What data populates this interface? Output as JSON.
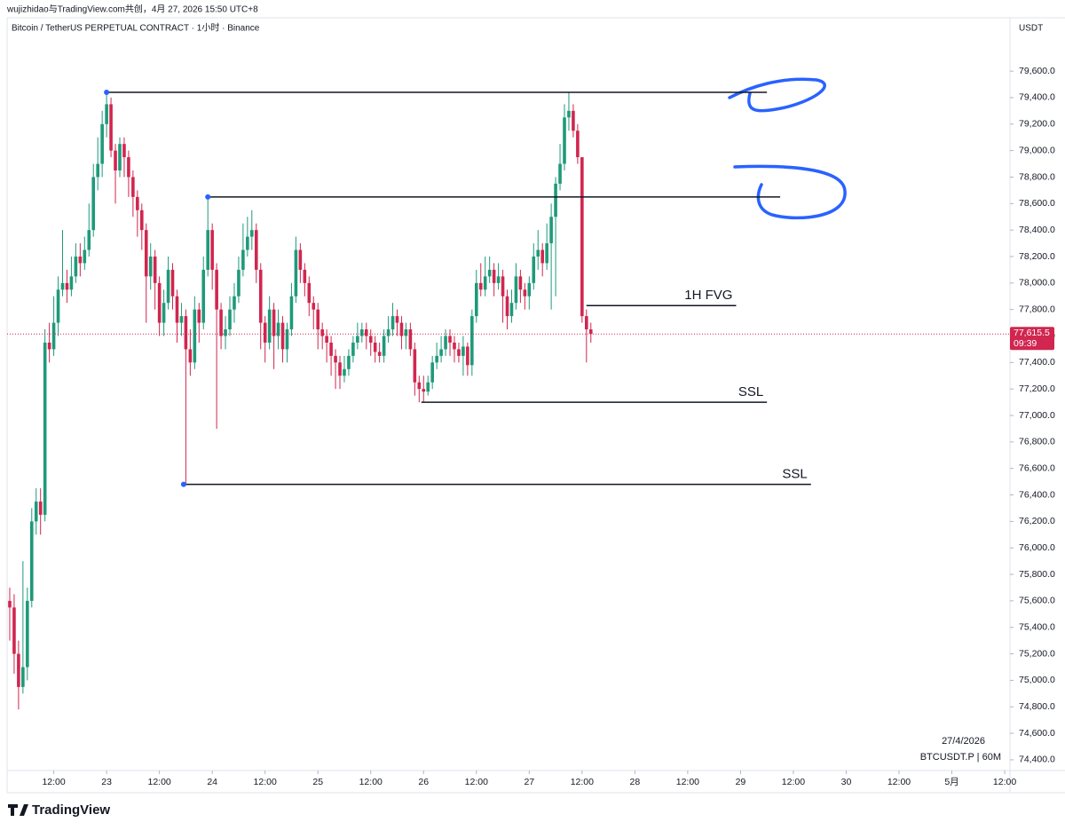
{
  "header": {
    "watermark": "wujizhidao与TradingView.com共创，4月 27, 2026 15:50 UTC+8",
    "brand": "TradingView"
  },
  "chart_data": {
    "type": "candlestick",
    "title": "Bitcoin / TetherUS PERPETUAL CONTRACT · 1小时 · Binance",
    "y_unit": "USDT",
    "date_note": "27/4/2026",
    "symbol_note": "BTCUSDT.P | 60M",
    "up_color": "#1e9a7a",
    "down_color": "#d0264f",
    "x": [
      0,
      1,
      2,
      3,
      4,
      5,
      6,
      7,
      8,
      9,
      10,
      11,
      12,
      13,
      14,
      15,
      16,
      17,
      18,
      19,
      20,
      21,
      22,
      23,
      24,
      25,
      26,
      27,
      28,
      29,
      30,
      31,
      32,
      33,
      34,
      35,
      36,
      37,
      38,
      39,
      40,
      41,
      42,
      43,
      44,
      45,
      46,
      47,
      48,
      49,
      50,
      51,
      52,
      53,
      54,
      55,
      56,
      57,
      58,
      59,
      60,
      61,
      62,
      63,
      64,
      65,
      66,
      67,
      68,
      69,
      70,
      71,
      72,
      73,
      74,
      75,
      76,
      77,
      78,
      79,
      80,
      81,
      82,
      83,
      84,
      85,
      86,
      87,
      88,
      89,
      90,
      91,
      92,
      93,
      94,
      95,
      96,
      97,
      98,
      99,
      100,
      101,
      102,
      103,
      104,
      105,
      106,
      107,
      108,
      109,
      110,
      111,
      112,
      113,
      114,
      115,
      116,
      117,
      118,
      119,
      120,
      121,
      122,
      123,
      124,
      125,
      126,
      127,
      128,
      129,
      130,
      131,
      132
    ],
    "open": [
      75600,
      75550,
      75200,
      74950,
      75100,
      75600,
      76200,
      76350,
      76250,
      77550,
      77500,
      77700,
      77950,
      78000,
      77950,
      78050,
      78200,
      78150,
      78250,
      78400,
      78800,
      78900,
      79200,
      79350,
      79000,
      78850,
      79050,
      78950,
      78800,
      78650,
      78550,
      78400,
      78050,
      78200,
      78000,
      77700,
      77850,
      78100,
      77900,
      77700,
      77750,
      77500,
      77400,
      77800,
      77700,
      78100,
      78400,
      78100,
      77800,
      77600,
      77650,
      77800,
      77900,
      78100,
      78250,
      78350,
      78400,
      78100,
      77700,
      77550,
      77800,
      77600,
      77700,
      77500,
      77650,
      77900,
      78250,
      78100,
      78000,
      77850,
      77800,
      77650,
      77600,
      77550,
      77450,
      77400,
      77300,
      77350,
      77450,
      77550,
      77600,
      77650,
      77600,
      77550,
      77480,
      77450,
      77600,
      77650,
      77750,
      77700,
      77600,
      77650,
      77500,
      77250,
      77200,
      77180,
      77250,
      77400,
      77450,
      77500,
      77600,
      77550,
      77500,
      77450,
      77520,
      77380,
      77750,
      78000,
      77950,
      78050,
      78100,
      78000,
      78050,
      77900,
      77750,
      77850,
      78050,
      77950,
      77900,
      78000,
      78200,
      78250,
      78150,
      78300,
      78500,
      78750,
      78900,
      79250,
      79300,
      79150,
      78950,
      77750,
      77650
    ],
    "high": [
      75700,
      75650,
      75300,
      75900,
      75700,
      76300,
      76450,
      76450,
      77650,
      77700,
      77900,
      78050,
      78400,
      78100,
      78200,
      78300,
      78300,
      78350,
      78600,
      78900,
      79100,
      79300,
      79440,
      79400,
      79050,
      79100,
      79100,
      79000,
      78850,
      78700,
      78600,
      78450,
      78300,
      78250,
      78050,
      77950,
      78200,
      78150,
      77950,
      77850,
      77800,
      77650,
      77900,
      77850,
      78200,
      78650,
      78450,
      78150,
      77850,
      77750,
      77900,
      78000,
      78200,
      78450,
      78500,
      78550,
      78450,
      78150,
      77750,
      77900,
      77850,
      77800,
      77750,
      77700,
      78000,
      78350,
      78300,
      78150,
      78050,
      77900,
      77850,
      77700,
      77650,
      77600,
      77500,
      77450,
      77450,
      77500,
      77600,
      77700,
      77700,
      77700,
      77650,
      77600,
      77550,
      77650,
      77750,
      77850,
      77800,
      77750,
      77700,
      77700,
      77550,
      77300,
      77300,
      77300,
      77450,
      77550,
      77600,
      77650,
      77650,
      77600,
      77550,
      77600,
      77550,
      77800,
      78100,
      78150,
      78200,
      78200,
      78150,
      78150,
      78100,
      77950,
      77950,
      78150,
      78100,
      78000,
      78050,
      78300,
      78400,
      78300,
      78450,
      78600,
      78800,
      79050,
      79350,
      79440,
      79350,
      79200,
      78950,
      77800,
      77700
    ],
    "low": [
      75300,
      75050,
      74780,
      74900,
      75000,
      75550,
      76100,
      76100,
      76200,
      77400,
      77450,
      77600,
      77900,
      77850,
      77900,
      78000,
      78050,
      78100,
      78200,
      78350,
      78700,
      78800,
      79100,
      78950,
      78600,
      78800,
      78800,
      78650,
      78500,
      78350,
      78250,
      77700,
      77950,
      77800,
      77600,
      77600,
      77800,
      77800,
      77550,
      77600,
      76480,
      77300,
      77350,
      77550,
      77650,
      78050,
      77950,
      76900,
      77500,
      77500,
      77600,
      77700,
      77850,
      78050,
      78200,
      78250,
      78000,
      77500,
      77400,
      77500,
      77350,
      77500,
      77400,
      77400,
      77600,
      77850,
      78000,
      77900,
      77750,
      77650,
      77500,
      77500,
      77400,
      77300,
      77200,
      77200,
      77250,
      77300,
      77400,
      77500,
      77550,
      77500,
      77450,
      77400,
      77400,
      77400,
      77550,
      77600,
      77600,
      77500,
      77500,
      77450,
      77150,
      77100,
      77100,
      77150,
      77200,
      77350,
      77400,
      77450,
      77450,
      77400,
      77400,
      77300,
      77300,
      77300,
      77700,
      77900,
      77900,
      78000,
      77900,
      77950,
      77700,
      77650,
      77700,
      77800,
      77850,
      77800,
      77800,
      77950,
      78100,
      78050,
      78100,
      77800,
      77900,
      78700,
      78850,
      79150,
      79100,
      78900,
      77700,
      77400,
      77550
    ],
    "close": [
      75550,
      75200,
      74950,
      75100,
      75600,
      76200,
      76350,
      76250,
      77550,
      77500,
      77700,
      77950,
      78000,
      77950,
      78050,
      78200,
      78150,
      78250,
      78400,
      78800,
      78900,
      79200,
      79350,
      79000,
      78850,
      79050,
      78950,
      78800,
      78650,
      78550,
      78400,
      78050,
      78200,
      78000,
      77700,
      77850,
      78100,
      77900,
      77700,
      77750,
      77500,
      77400,
      77800,
      77700,
      78100,
      78400,
      78100,
      77800,
      77600,
      77650,
      77800,
      77900,
      78100,
      78250,
      78350,
      78400,
      78100,
      77700,
      77550,
      77800,
      77600,
      77700,
      77500,
      77650,
      77900,
      78250,
      78100,
      78000,
      77850,
      77800,
      77650,
      77600,
      77550,
      77450,
      77400,
      77300,
      77350,
      77450,
      77550,
      77600,
      77650,
      77600,
      77550,
      77480,
      77450,
      77600,
      77650,
      77750,
      77700,
      77600,
      77650,
      77500,
      77250,
      77200,
      77180,
      77250,
      77400,
      77450,
      77500,
      77600,
      77550,
      77500,
      77450,
      77520,
      77380,
      77750,
      78000,
      77950,
      78050,
      78100,
      78000,
      78050,
      77900,
      77750,
      77850,
      78050,
      77950,
      77900,
      78000,
      78200,
      78250,
      78150,
      78300,
      78500,
      78750,
      78900,
      79250,
      79300,
      79150,
      78950,
      77750,
      77650,
      77615.5
    ],
    "last_price": {
      "value": 77615.5,
      "label": "77,615.5"
    },
    "countdown": "09:39",
    "levels": [
      {
        "y": 79440,
        "x": [
          22,
          172
        ],
        "dot": true
      },
      {
        "y": 78650,
        "x": [
          45,
          175
        ],
        "dot": true
      },
      {
        "y": 77830,
        "x": [
          131,
          165
        ],
        "text": "1H FVG"
      },
      {
        "y": 77100,
        "x": [
          93.5,
          172
        ],
        "text": "SSL"
      },
      {
        "y": 76480,
        "x": [
          39.5,
          182
        ],
        "text": "SSL",
        "dot": true
      }
    ],
    "xlim": [
      -0.6,
      227.2
    ],
    "xticks": [
      {
        "value": 10,
        "label": "12:00"
      },
      {
        "value": 22,
        "label": "23"
      },
      {
        "value": 34,
        "label": "12:00"
      },
      {
        "value": 46,
        "label": "24"
      },
      {
        "value": 58,
        "label": "12:00"
      },
      {
        "value": 70,
        "label": "25"
      },
      {
        "value": 82,
        "label": "12:00"
      },
      {
        "value": 94,
        "label": "26"
      },
      {
        "value": 106,
        "label": "12:00"
      },
      {
        "value": 118,
        "label": "27"
      },
      {
        "value": 130,
        "label": "12:00"
      },
      {
        "value": 142,
        "label": "28"
      },
      {
        "value": 154,
        "label": "12:00"
      },
      {
        "value": 166,
        "label": "29"
      },
      {
        "value": 178,
        "label": "12:00"
      },
      {
        "value": 190,
        "label": "30"
      },
      {
        "value": 202,
        "label": "12:00"
      },
      {
        "value": 214,
        "label": "5月"
      },
      {
        "value": 226,
        "label": "12:00"
      }
    ],
    "ylim": [
      74319,
      80003
    ],
    "yticks": [
      {
        "value": 79600,
        "label": "79,600.0"
      },
      {
        "value": 79400,
        "label": "79,400.0"
      },
      {
        "value": 79200,
        "label": "79,200.0"
      },
      {
        "value": 79000,
        "label": "79,000.0"
      },
      {
        "value": 78800,
        "label": "78,800.0"
      },
      {
        "value": 78600,
        "label": "78,600.0"
      },
      {
        "value": 78400,
        "label": "78,400.0"
      },
      {
        "value": 78200,
        "label": "78,200.0"
      },
      {
        "value": 78000,
        "label": "78,000.0"
      },
      {
        "value": 77800,
        "label": "77,800.0"
      },
      {
        "value": 77600,
        "label": "77,600.0"
      },
      {
        "value": 77400,
        "label": "77,400.0"
      },
      {
        "value": 77200,
        "label": "77,200.0"
      },
      {
        "value": 77000,
        "label": "77,000.0"
      },
      {
        "value": 76800,
        "label": "76,800.0"
      },
      {
        "value": 76600,
        "label": "76,600.0"
      },
      {
        "value": 76400,
        "label": "76,400.0"
      },
      {
        "value": 76200,
        "label": "76,200.0"
      },
      {
        "value": 76000,
        "label": "76,000.0"
      },
      {
        "value": 75800,
        "label": "75,800.0"
      },
      {
        "value": 75600,
        "label": "75,600.0"
      },
      {
        "value": 75400,
        "label": "75,400.0"
      },
      {
        "value": 75200,
        "label": "75,200.0"
      },
      {
        "value": 75000,
        "label": "75,000.0"
      },
      {
        "value": 74800,
        "label": "74,800.0"
      },
      {
        "value": 74600,
        "label": "74,600.0"
      },
      {
        "value": 74400,
        "label": "74,400.0"
      }
    ],
    "grid": false
  }
}
